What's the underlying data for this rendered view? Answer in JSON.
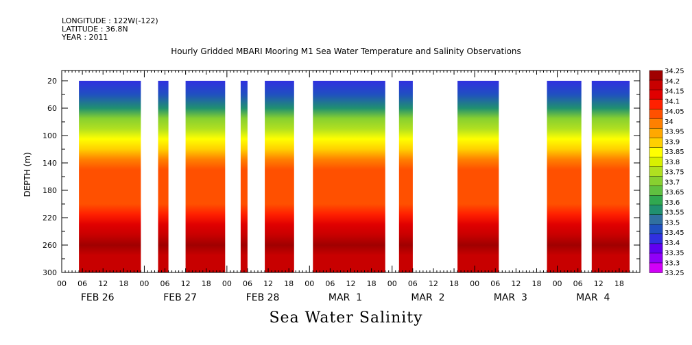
{
  "header": {
    "longitude": "LONGITUDE : 122W(-122)",
    "latitude": "LATITUDE : 36.8N",
    "year": "YEAR : 2011"
  },
  "chart_data": {
    "type": "heatmap",
    "title": "Hourly Gridded MBARI Mooring M1 Sea Water Temperature and Salinity Observations",
    "caption": "Sea Water Salinity",
    "ylabel": "DEPTH (m)",
    "ylim": [
      300,
      5
    ],
    "y_ticks": [
      20,
      60,
      100,
      140,
      180,
      220,
      260,
      300
    ],
    "x_hour_ticks": [
      "00",
      "06",
      "12",
      "18",
      "00",
      "06",
      "12",
      "18",
      "00",
      "06",
      "12",
      "18",
      "00",
      "06",
      "12",
      "18",
      "00",
      "06",
      "12",
      "18",
      "00",
      "06",
      "12",
      "18",
      "00",
      "06",
      "12",
      "18"
    ],
    "x_day_labels": [
      "FEB 26",
      "FEB 27",
      "FEB 28",
      "MAR  1",
      "MAR  2",
      "MAR  3",
      "MAR  4"
    ],
    "xlim_hours": [
      0,
      168
    ],
    "data_blocks_hours": [
      [
        5,
        23
      ],
      [
        28,
        31
      ],
      [
        36,
        47.5
      ],
      [
        52,
        54
      ],
      [
        59,
        67.5
      ],
      [
        73,
        94
      ],
      [
        98,
        102
      ],
      [
        115,
        127
      ],
      [
        141,
        151
      ],
      [
        154,
        165
      ]
    ],
    "depth_profile": [
      {
        "depth": 20,
        "value": 33.36
      },
      {
        "depth": 40,
        "value": 33.42
      },
      {
        "depth": 60,
        "value": 33.55
      },
      {
        "depth": 75,
        "value": 33.68
      },
      {
        "depth": 90,
        "value": 33.75
      },
      {
        "depth": 105,
        "value": 33.82
      },
      {
        "depth": 120,
        "value": 33.88
      },
      {
        "depth": 135,
        "value": 33.96
      },
      {
        "depth": 150,
        "value": 34.02
      },
      {
        "depth": 200,
        "value": 34.05
      },
      {
        "depth": 215,
        "value": 34.1
      },
      {
        "depth": 230,
        "value": 34.15
      },
      {
        "depth": 245,
        "value": 34.2
      },
      {
        "depth": 260,
        "value": 34.23
      },
      {
        "depth": 275,
        "value": 34.2
      },
      {
        "depth": 300,
        "value": 34.19
      }
    ],
    "colorbar": {
      "labels": [
        "34.25",
        "34.2",
        "34.15",
        "34.1",
        "34.05",
        "34",
        "33.95",
        "33.9",
        "33.85",
        "33.8",
        "33.75",
        "33.7",
        "33.65",
        "33.6",
        "33.55",
        "33.5",
        "33.45",
        "33.4",
        "33.35",
        "33.3",
        "33.25"
      ],
      "colors": [
        "#a00000",
        "#c80000",
        "#e00000",
        "#ff2000",
        "#ff5000",
        "#ff8000",
        "#ffa800",
        "#ffd000",
        "#ffff00",
        "#d8f000",
        "#b0e020",
        "#88d030",
        "#60c040",
        "#30a850",
        "#209070",
        "#3070a0",
        "#2050c0",
        "#3030e0",
        "#6000f0",
        "#9000f8",
        "#d000f8"
      ]
    }
  }
}
